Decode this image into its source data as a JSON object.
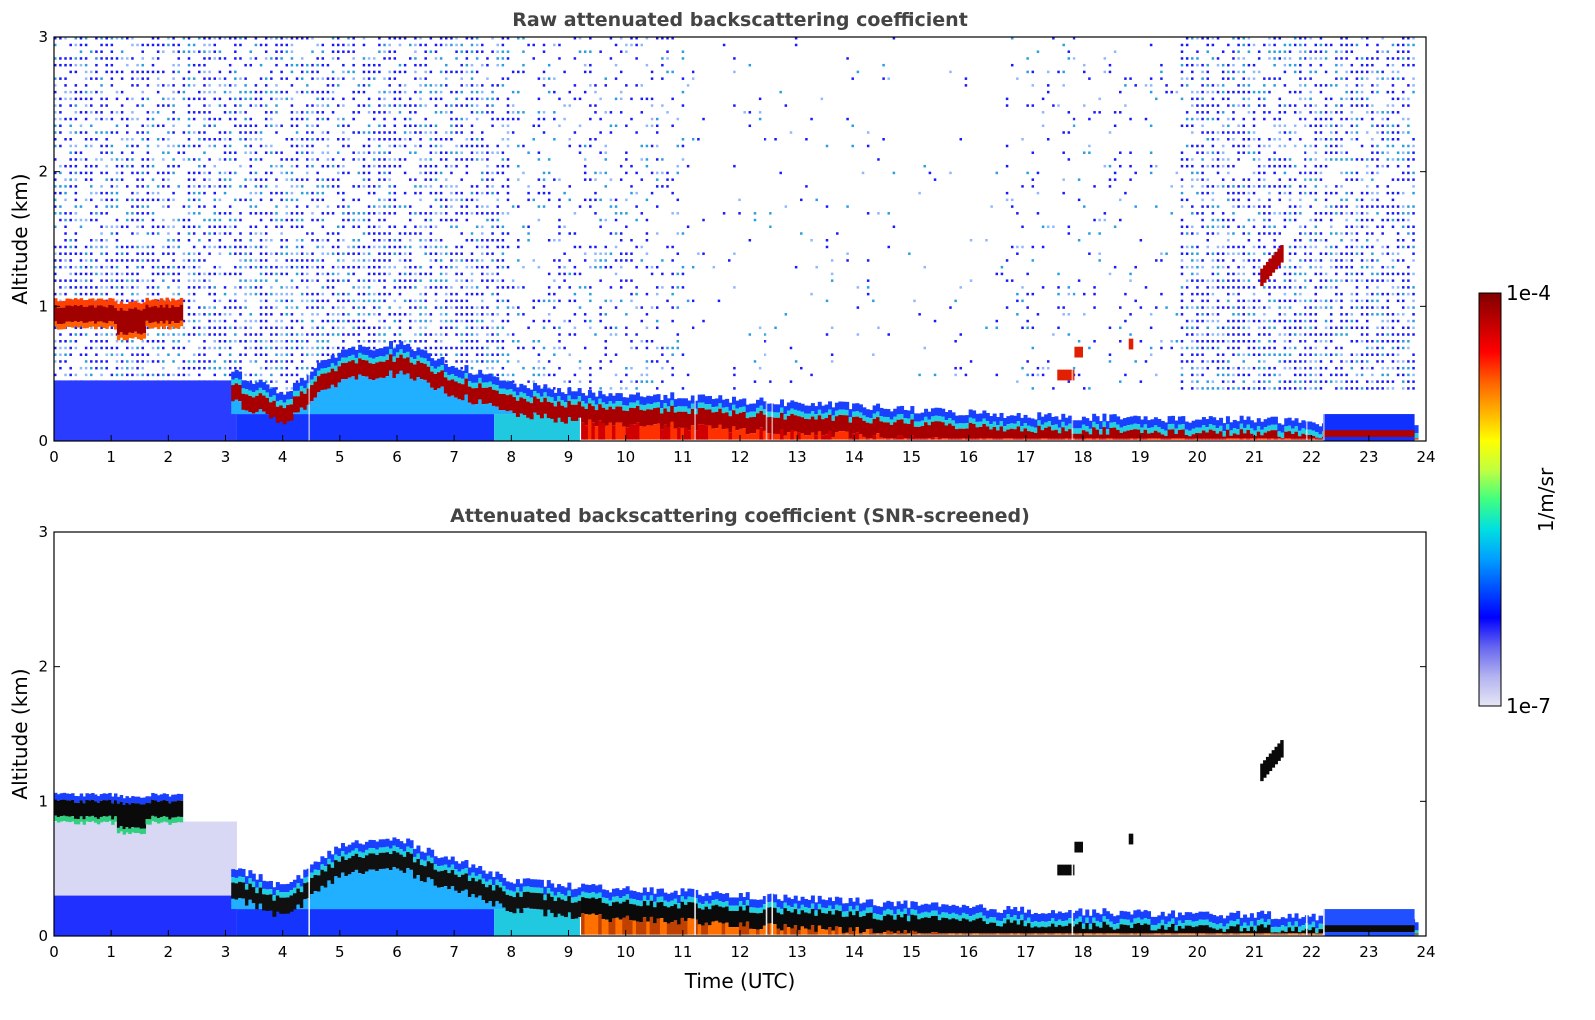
{
  "chart_data": [
    {
      "type": "heatmap",
      "title": "Raw attenuated backscattering coefficient",
      "ylabel": "Altitude (km)",
      "xlabel": "",
      "xlim": [
        0,
        24
      ],
      "ylim": [
        0,
        3
      ],
      "xticks": [
        0,
        1,
        2,
        3,
        4,
        5,
        6,
        7,
        8,
        9,
        10,
        11,
        12,
        13,
        14,
        15,
        16,
        17,
        18,
        19,
        20,
        21,
        22,
        23,
        24
      ],
      "yticks": [
        0,
        1,
        2,
        3
      ],
      "data_end_time": 23.8,
      "features": [
        {
          "name": "residual-layer cloud",
          "time": [
            0,
            2.2
          ],
          "altitude_km": [
            0.85,
            1.0
          ],
          "level": "1e-4"
        },
        {
          "name": "boundary layer top",
          "time_points": [
            3.1,
            4,
            5,
            6,
            7,
            8,
            9,
            10,
            11,
            12,
            13,
            14,
            15,
            16,
            17,
            18,
            19,
            20,
            21,
            22,
            23,
            23.8
          ],
          "altitude_km": [
            0.45,
            0.3,
            0.62,
            0.66,
            0.5,
            0.36,
            0.31,
            0.28,
            0.27,
            0.24,
            0.22,
            0.2,
            0.17,
            0.15,
            0.13,
            0.12,
            0.11,
            0.1,
            0.1,
            0.08,
            0.07,
            0.07
          ]
        },
        {
          "name": "elevated layer",
          "time": [
            21.1,
            21.5
          ],
          "altitude_km": [
            1.2,
            1.4
          ]
        }
      ]
    },
    {
      "type": "heatmap",
      "title": "Attenuated backscattering coefficient (SNR-screened)",
      "ylabel": "Altitude (km)",
      "xlabel": "Time (UTC)",
      "xlim": [
        0,
        24
      ],
      "ylim": [
        0,
        3
      ],
      "xticks": [
        0,
        1,
        2,
        3,
        4,
        5,
        6,
        7,
        8,
        9,
        10,
        11,
        12,
        13,
        14,
        15,
        16,
        17,
        18,
        19,
        20,
        21,
        22,
        23,
        24
      ],
      "yticks": [
        0,
        1,
        2,
        3
      ],
      "data_end_time": 23.8
    }
  ],
  "colorbar": {
    "label": "1/m/sr",
    "min_label": "1e-7",
    "max_label": "1e-4",
    "scale": "log",
    "colors": [
      "#e6e6f5",
      "#b3b3f0",
      "#6666f0",
      "#0000ff",
      "#0050ff",
      "#00a0ff",
      "#00e0e0",
      "#40ff80",
      "#c0ff40",
      "#ffff00",
      "#ffb000",
      "#ff6000",
      "#ff0000",
      "#c00000",
      "#800000"
    ]
  }
}
